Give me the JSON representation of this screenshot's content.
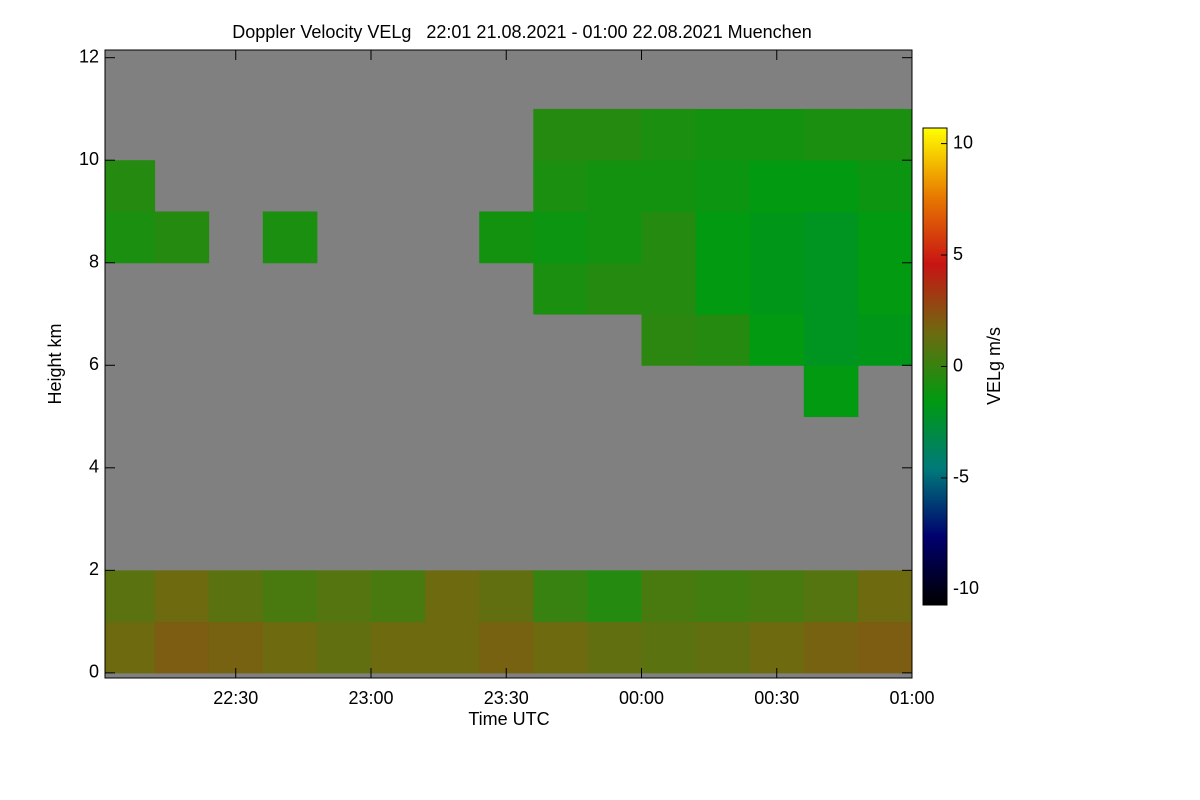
{
  "chart_data": {
    "type": "heatmap",
    "title": "Doppler Velocity VELg   22:01 21.08.2021 - 01:00 22.08.2021 Muenchen",
    "x_label": "Time UTC",
    "y_label": "Height km",
    "colorbar_label": "VELg m/s",
    "background": "#808080",
    "colormap": [
      "#000000",
      "#00006e",
      "#007a7a",
      "#009a10",
      "#6e6a10",
      "#c81414",
      "#e87a00",
      "#ffff00"
    ],
    "xlim": [
      22.0167,
      25
    ],
    "xticks": [
      {
        "value": 22.5,
        "label": "22:30"
      },
      {
        "value": 23,
        "label": "23:00"
      },
      {
        "value": 23.5,
        "label": "23:30"
      },
      {
        "value": 24,
        "label": "00:00"
      },
      {
        "value": 24.5,
        "label": "00:30"
      },
      {
        "value": 25,
        "label": "01:00"
      }
    ],
    "ylim": [
      -0.1,
      12.15
    ],
    "yticks": [
      0,
      2,
      4,
      6,
      8,
      10,
      12
    ],
    "clim": [
      -10.7,
      10.7
    ],
    "cticks": [
      -10,
      -5,
      0,
      5,
      10
    ],
    "x": [
      22.1,
      22.3,
      22.5,
      22.7,
      22.9,
      23.1,
      23.3,
      23.5,
      23.7,
      23.9,
      24.1,
      24.3,
      24.5,
      24.7,
      24.9
    ],
    "y": [
      0.5,
      1.5,
      2.5,
      3.5,
      4.5,
      5.5,
      6.5,
      7.5,
      8.5,
      9.5,
      10.5,
      11.5
    ],
    "z": [
      [
        1.5,
        2,
        1.8,
        1.5,
        1.2,
        1.5,
        1.5,
        1.8,
        1.5,
        1.2,
        1,
        1.2,
        1.5,
        1.8,
        2
      ],
      [
        1,
        1.5,
        1,
        0.5,
        0.8,
        0.5,
        1.5,
        1.2,
        0,
        -0.5,
        0.5,
        0.3,
        0.5,
        0.8,
        1.5
      ],
      [
        null,
        null,
        null,
        null,
        null,
        null,
        null,
        null,
        null,
        null,
        null,
        null,
        null,
        null,
        null
      ],
      [
        null,
        null,
        null,
        null,
        null,
        null,
        null,
        null,
        null,
        null,
        null,
        null,
        null,
        null,
        null
      ],
      [
        null,
        null,
        null,
        null,
        null,
        null,
        null,
        null,
        null,
        null,
        null,
        null,
        null,
        null,
        null
      ],
      [
        null,
        null,
        null,
        null,
        null,
        null,
        null,
        null,
        null,
        null,
        null,
        null,
        null,
        -1.5,
        null
      ],
      [
        null,
        null,
        null,
        null,
        null,
        null,
        null,
        null,
        null,
        null,
        -0.3,
        -0.5,
        -1.5,
        -2,
        -1.8
      ],
      [
        null,
        null,
        null,
        null,
        null,
        null,
        null,
        null,
        -0.8,
        -0.5,
        -0.5,
        -1.5,
        -1.8,
        -2,
        -1.5
      ],
      [
        -0.8,
        -0.5,
        null,
        -0.8,
        null,
        null,
        null,
        -1,
        -1.2,
        -1,
        -0.5,
        -1.5,
        -1.8,
        -2,
        -1.5
      ],
      [
        -0.5,
        null,
        null,
        null,
        null,
        null,
        null,
        null,
        -0.8,
        -1,
        -1,
        -1.2,
        -1.5,
        -1.5,
        -1.2
      ],
      [
        null,
        null,
        null,
        null,
        null,
        null,
        null,
        null,
        -0.5,
        -0.5,
        -0.8,
        -1,
        -1,
        -0.8,
        -0.8
      ],
      [
        null,
        null,
        null,
        null,
        null,
        null,
        null,
        null,
        null,
        null,
        null,
        null,
        null,
        null,
        null
      ]
    ]
  }
}
